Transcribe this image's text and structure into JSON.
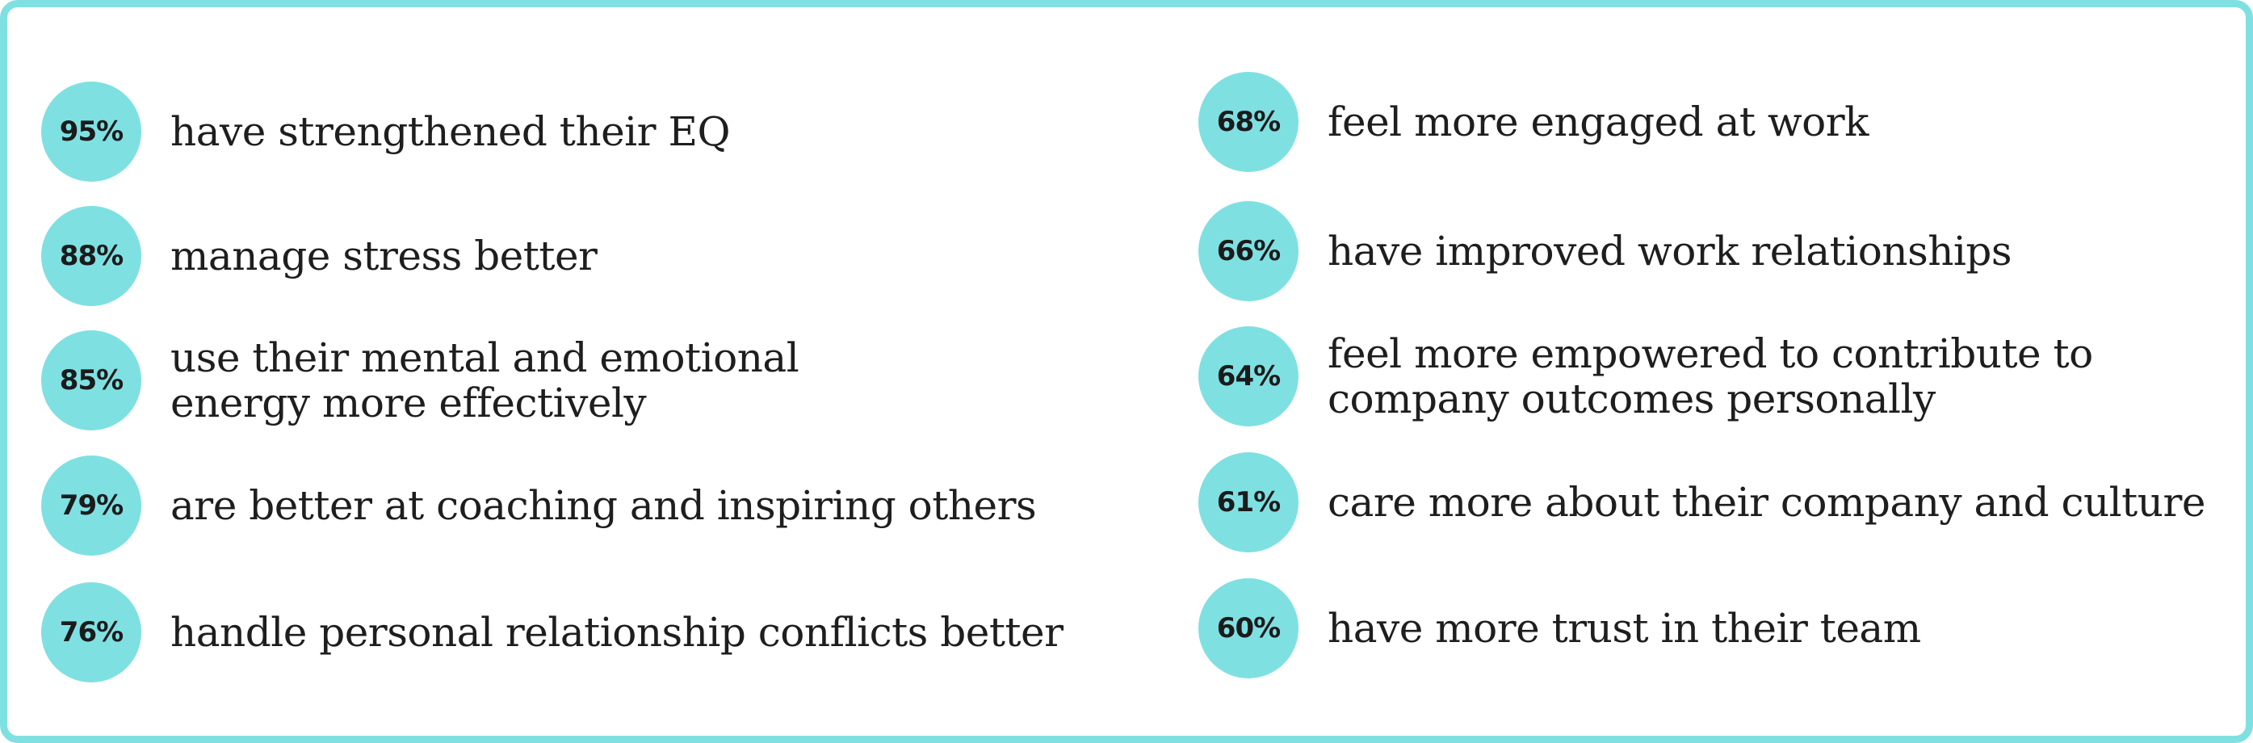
{
  "colors": {
    "accent": "#7fe0e2",
    "text": "#1e1e1e"
  },
  "left_column": [
    {
      "percent": "95%",
      "line1": "have strengthened their EQ",
      "line2": ""
    },
    {
      "percent": "88%",
      "line1": "manage stress better",
      "line2": ""
    },
    {
      "percent": "85%",
      "line1": "use their mental and emotional",
      "line2": "energy more effectively"
    },
    {
      "percent": "79%",
      "line1": "are better at coaching and inspiring others",
      "line2": ""
    },
    {
      "percent": "76%",
      "line1": "handle personal relationship conflicts better",
      "line2": ""
    }
  ],
  "right_column": [
    {
      "percent": "68%",
      "line1": "feel more engaged at work",
      "line2": ""
    },
    {
      "percent": "66%",
      "line1": "have improved work relationships",
      "line2": ""
    },
    {
      "percent": "64%",
      "line1": "feel more empowered to contribute to",
      "line2": "company outcomes personally"
    },
    {
      "percent": "61%",
      "line1": "care more about their company and culture",
      "line2": ""
    },
    {
      "percent": "60%",
      "line1": "have more trust in their team",
      "line2": ""
    }
  ]
}
